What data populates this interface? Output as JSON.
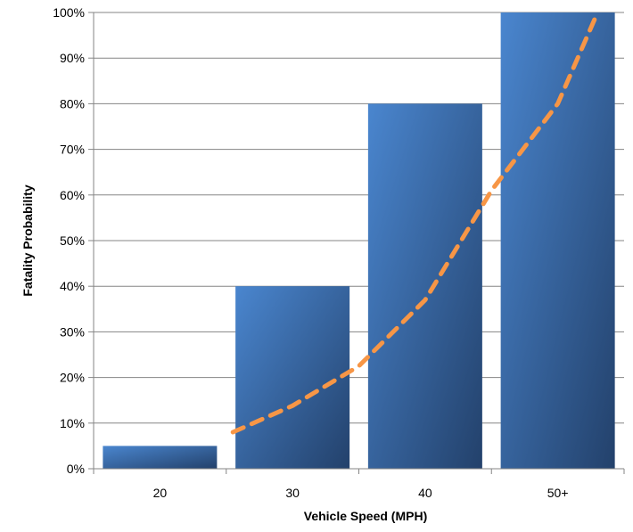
{
  "chart_data": {
    "type": "bar",
    "categories": [
      "20",
      "30",
      "40",
      "50+"
    ],
    "series": [
      {
        "values": [
          0.05,
          0.4,
          0.8,
          1.0
        ]
      }
    ],
    "trendline": {
      "type": "exponential",
      "style": "dashed",
      "color": "#F79646",
      "points": [
        {
          "x": 0.55,
          "y": 0.08
        },
        {
          "x": 1.0,
          "y": 0.138
        },
        {
          "x": 1.5,
          "y": 0.225
        },
        {
          "x": 2.0,
          "y": 0.37
        },
        {
          "x": 2.5,
          "y": 0.61
        },
        {
          "x": 3.0,
          "y": 0.8
        },
        {
          "x": 3.3,
          "y": 1.0
        }
      ]
    },
    "xlabel": "Vehicle Speed (MPH)",
    "ylabel": "Fatality Probability",
    "ylim": [
      0,
      1
    ],
    "yticks": [
      "0%",
      "10%",
      "20%",
      "30%",
      "40%",
      "50%",
      "60%",
      "70%",
      "80%",
      "90%",
      "100%"
    ],
    "grid": true,
    "legend": "none",
    "colors": {
      "bar_light": "#4A86CF",
      "bar_dark": "#23416B",
      "trend": "#F79646",
      "grid": "#858585",
      "axis": "#858585"
    }
  }
}
